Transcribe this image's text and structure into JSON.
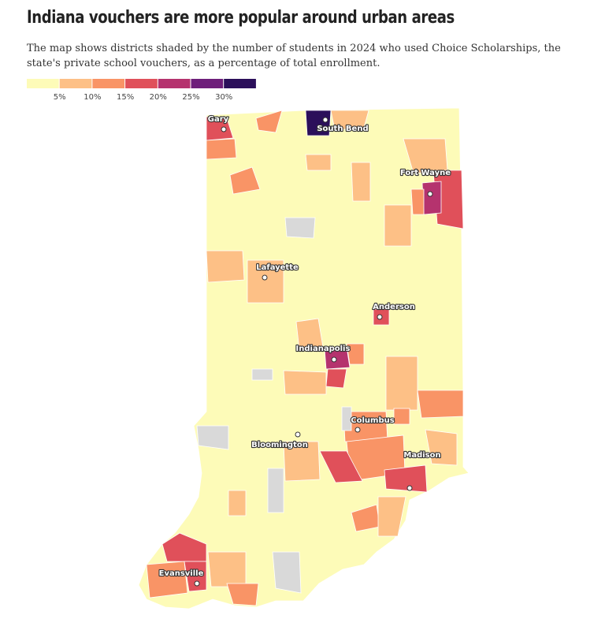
{
  "title": "Indiana vouchers are more popular around urban areas",
  "subtitle": "The map shows districts shaded by the number of students in 2024 who used Choice Scholarships, the state's private school vouchers, as a percentage of total enrollment.",
  "legend": {
    "colors": [
      "#fdfbb8",
      "#fdc086",
      "#f99466",
      "#e0505a",
      "#b5336e",
      "#6e1e7a",
      "#2b0f5a"
    ],
    "labels": [
      "5%",
      "10%",
      "15%",
      "20%",
      "25%",
      "30%"
    ],
    "no_data_color": "#d9d9d9"
  },
  "cities": [
    "Gary",
    "South Bend",
    "Fort Wayne",
    "Lafayette",
    "Anderson",
    "Indianapolis",
    "Columbus",
    "Bloomington",
    "Madison",
    "Evansville"
  ]
}
